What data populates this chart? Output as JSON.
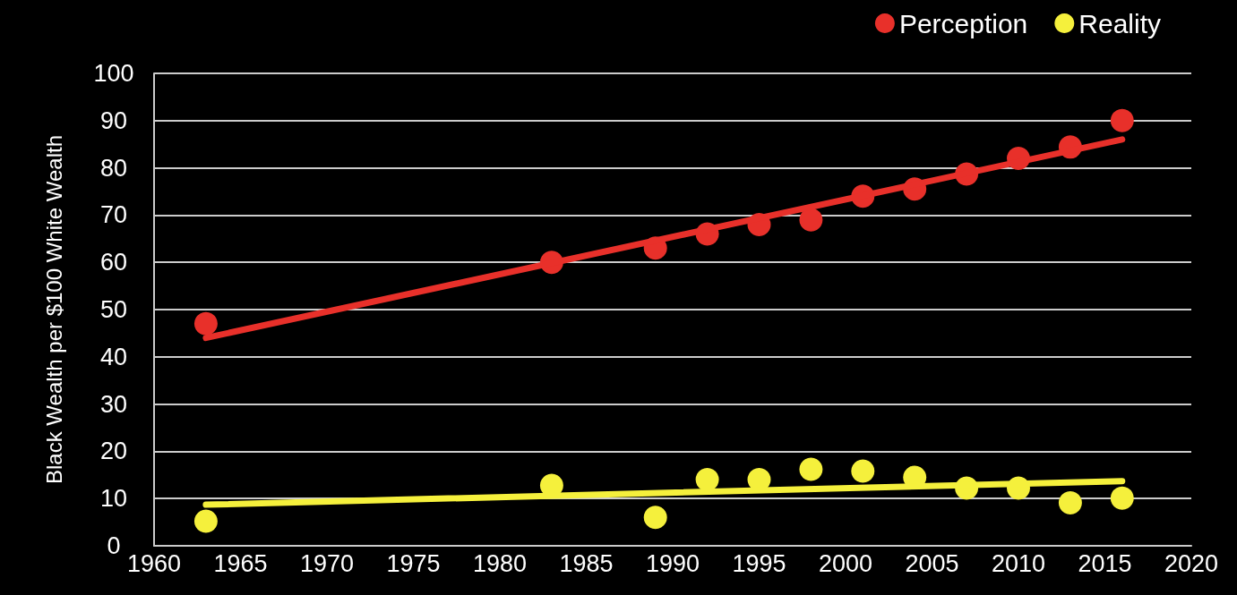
{
  "chart_data": {
    "type": "scatter",
    "ylabel": "Black Wealth per $100 White Wealth",
    "xlim": [
      1960,
      2020
    ],
    "xticks": [
      1960,
      1965,
      1970,
      1975,
      1980,
      1985,
      1990,
      1995,
      2000,
      2005,
      2010,
      2015,
      2020
    ],
    "ylim": [
      0,
      100
    ],
    "yticks": [
      0,
      10,
      20,
      30,
      40,
      50,
      60,
      70,
      80,
      90,
      100
    ],
    "grid": "y",
    "legend": "top right",
    "series": [
      {
        "name": "Perception",
        "marker": "circle",
        "color": "#e8302a",
        "x": [
          1963,
          1983,
          1989,
          1992,
          1995,
          1998,
          2001,
          2004,
          2007,
          2010,
          2013,
          2016
        ],
        "values": [
          47,
          60,
          63,
          66,
          68,
          69,
          74,
          75.5,
          78.7,
          82,
          84.4,
          90
        ]
      },
      {
        "name": "Reality",
        "marker": "circle",
        "color": "#f5f03c",
        "x": [
          1963,
          1983,
          1989,
          1992,
          1995,
          1998,
          2001,
          2004,
          2007,
          2010,
          2013,
          2016
        ],
        "values": [
          5.2,
          12.8,
          6,
          14,
          14,
          16.2,
          15.8,
          14.5,
          12.2,
          12.2,
          9.1,
          10.1
        ]
      },
      {
        "type": "line",
        "marker": "none",
        "line_style": "solid",
        "color": "#e8302a",
        "x": [
          1963,
          2016
        ],
        "values": [
          44,
          86
        ]
      },
      {
        "type": "line",
        "marker": "none",
        "line_style": "solid",
        "color": "#f5f03c",
        "x": [
          1963,
          2016
        ],
        "values": [
          8.7,
          13.7
        ]
      }
    ]
  }
}
